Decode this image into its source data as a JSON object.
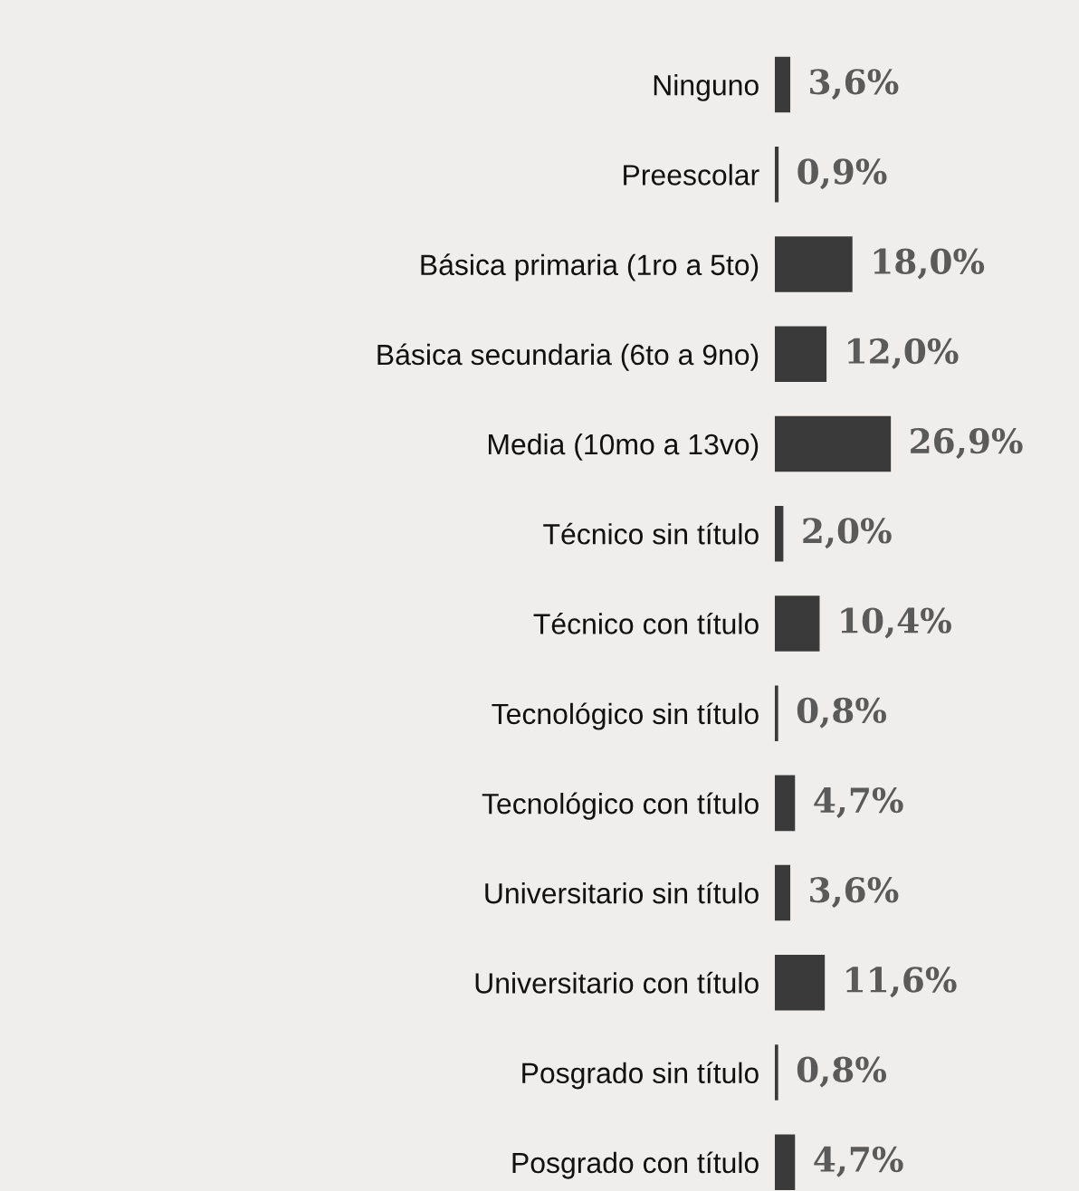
{
  "chart_data": {
    "type": "bar",
    "orientation": "horizontal",
    "color": "#3a3a3a",
    "value_labels": [
      "3,6%",
      "0,9%",
      "18,0%",
      "12,0%",
      "26,9%",
      "2,0%",
      "10,4%",
      "0,8%",
      "4,7%",
      "3,6%",
      "11,6%",
      "0,8%",
      "4,7%"
    ],
    "categories": [
      "Ninguno",
      "Preescolar",
      "Básica primaria (1ro a 5to)",
      "Básica secundaria (6to a 9no)",
      "Media (10mo a 13vo)",
      "Técnico sin título",
      "Técnico con título",
      "Tecnológico sin título",
      "Tecnológico con título",
      "Universitario sin título",
      "Universitario con título",
      "Posgrado sin título",
      "Posgrado con título"
    ],
    "values": [
      3.6,
      0.9,
      18.0,
      12.0,
      26.9,
      2.0,
      10.4,
      0.8,
      4.7,
      3.6,
      11.6,
      0.8,
      4.7
    ]
  }
}
